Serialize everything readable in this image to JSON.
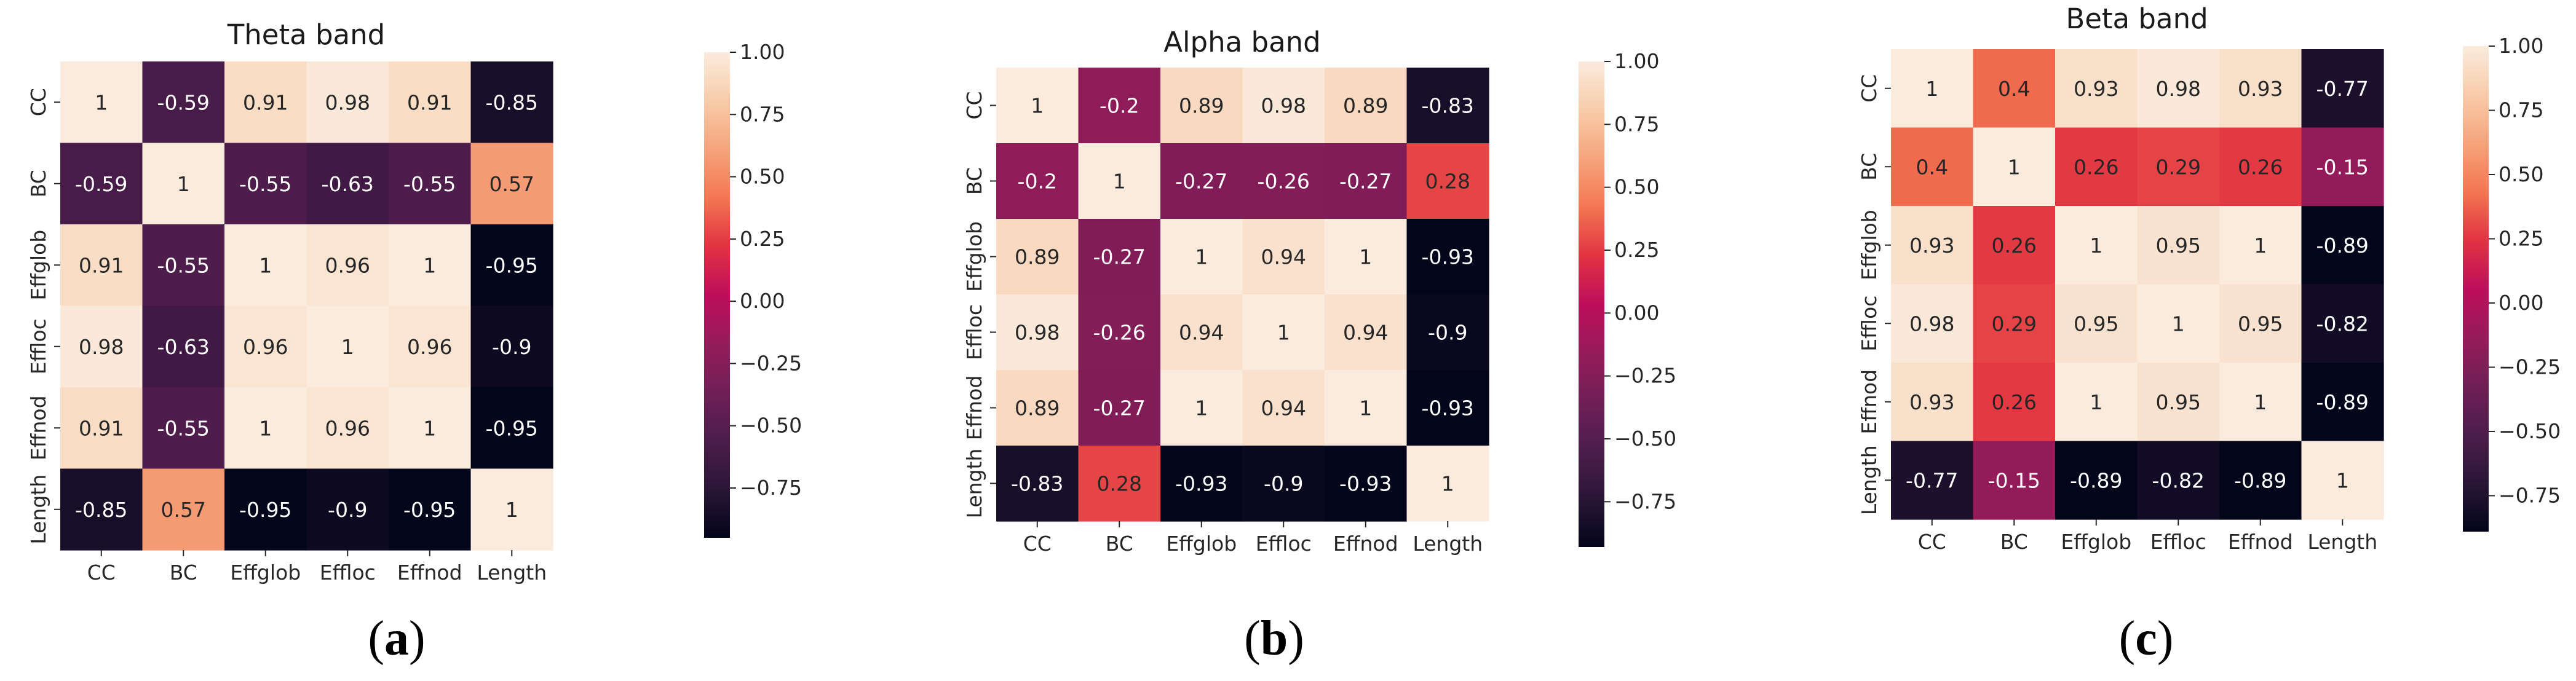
{
  "colors": {
    "colormap_rocket": [
      "#03051a",
      "#2a1637",
      "#4c1d4b",
      "#701f57",
      "#961b5a",
      "#be0e5b",
      "#e13342",
      "#f37651",
      "#f6a47c",
      "#f8ccaa",
      "#faebdd"
    ]
  },
  "chart_data": [
    {
      "type": "heatmap",
      "title": "Theta band",
      "panel_label": "a",
      "x_labels": [
        "CC",
        "BC",
        "Effglob",
        "Effloc",
        "Effnod",
        "Length"
      ],
      "y_labels": [
        "CC",
        "BC",
        "Effglob",
        "Effloc",
        "Effnod",
        "Length"
      ],
      "values": [
        [
          1,
          -0.59,
          0.91,
          0.98,
          0.91,
          -0.85
        ],
        [
          -0.59,
          1,
          -0.55,
          -0.63,
          -0.55,
          0.57
        ],
        [
          0.91,
          -0.55,
          1,
          0.96,
          1,
          -0.95
        ],
        [
          0.98,
          -0.63,
          0.96,
          1,
          0.96,
          -0.9
        ],
        [
          0.91,
          -0.55,
          1,
          0.96,
          1,
          -0.95
        ],
        [
          -0.85,
          0.57,
          -0.95,
          -0.9,
          -0.95,
          1
        ]
      ],
      "vmin": -0.95,
      "vmax": 1,
      "colorbar_ticks": [
        1,
        0.75,
        0.5,
        0.25,
        0,
        -0.25,
        -0.5,
        -0.75
      ],
      "colorbar_tick_labels": [
        "1.00",
        "0.75",
        "0.50",
        "0.25",
        "0.00",
        "−0.25",
        "−0.50",
        "−0.75"
      ]
    },
    {
      "type": "heatmap",
      "title": "Alpha band",
      "panel_label": "b",
      "x_labels": [
        "CC",
        "BC",
        "Effglob",
        "Effloc",
        "Effnod",
        "Length"
      ],
      "y_labels": [
        "CC",
        "BC",
        "Effglob",
        "Effloc",
        "Effnod",
        "Length"
      ],
      "values": [
        [
          1,
          -0.2,
          0.89,
          0.98,
          0.89,
          -0.83
        ],
        [
          -0.2,
          1,
          -0.27,
          -0.26,
          -0.27,
          0.28
        ],
        [
          0.89,
          -0.27,
          1,
          0.94,
          1,
          -0.93
        ],
        [
          0.98,
          -0.26,
          0.94,
          1,
          0.94,
          -0.9
        ],
        [
          0.89,
          -0.27,
          1,
          0.94,
          1,
          -0.93
        ],
        [
          -0.83,
          0.28,
          -0.93,
          -0.9,
          -0.93,
          1
        ]
      ],
      "vmin": -0.93,
      "vmax": 1,
      "colorbar_ticks": [
        1,
        0.75,
        0.5,
        0.25,
        0,
        -0.25,
        -0.5,
        -0.75
      ],
      "colorbar_tick_labels": [
        "1.00",
        "0.75",
        "0.50",
        "0.25",
        "0.00",
        "−0.25",
        "−0.50",
        "−0.75"
      ]
    },
    {
      "type": "heatmap",
      "title": "Beta band",
      "panel_label": "c",
      "x_labels": [
        "CC",
        "BC",
        "Effglob",
        "Effloc",
        "Effnod",
        "Length"
      ],
      "y_labels": [
        "CC",
        "BC",
        "Effglob",
        "Effloc",
        "Effnod",
        "Length"
      ],
      "values": [
        [
          1,
          0.4,
          0.93,
          0.98,
          0.93,
          -0.77
        ],
        [
          0.4,
          1,
          0.26,
          0.29,
          0.26,
          -0.15
        ],
        [
          0.93,
          0.26,
          1,
          0.95,
          1,
          -0.89
        ],
        [
          0.98,
          0.29,
          0.95,
          1,
          0.95,
          -0.82
        ],
        [
          0.93,
          0.26,
          1,
          0.95,
          1,
          -0.89
        ],
        [
          -0.77,
          -0.15,
          -0.89,
          -0.82,
          -0.89,
          1
        ]
      ],
      "vmin": -0.89,
      "vmax": 1,
      "colorbar_ticks": [
        1,
        0.75,
        0.5,
        0.25,
        0,
        -0.25,
        -0.5,
        -0.75
      ],
      "colorbar_tick_labels": [
        "1.00",
        "0.75",
        "0.50",
        "0.25",
        "0.00",
        "−0.25",
        "−0.50",
        "−0.75"
      ]
    }
  ]
}
